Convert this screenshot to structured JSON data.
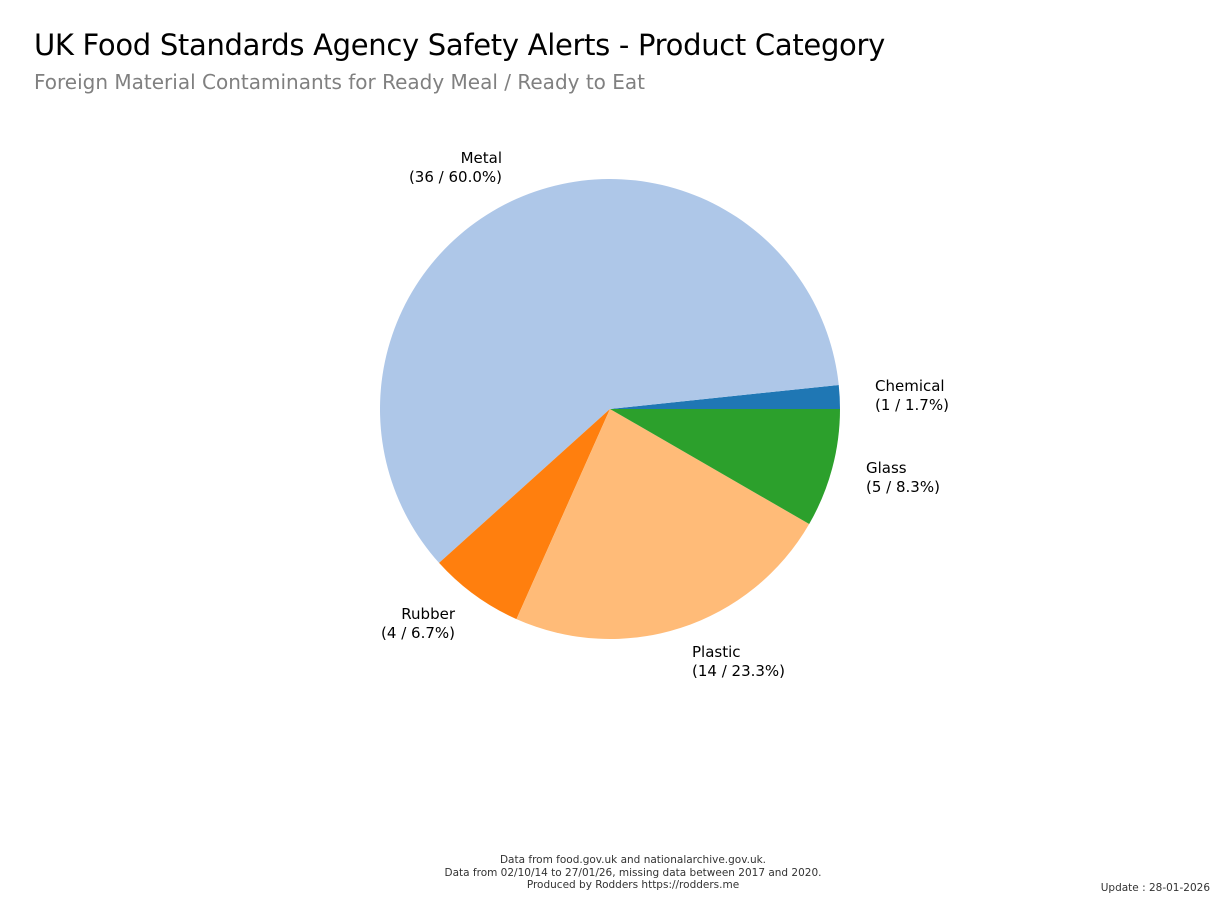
{
  "chart_data": {
    "type": "pie",
    "title": "UK Food Standards Agency Safety Alerts - Product Category",
    "subtitle": "Foreign Material Contaminants for Ready Meal / Ready to Eat",
    "slices": [
      {
        "name": "Chemical",
        "value": 1,
        "percent": 1.7,
        "label": "(1 / 1.7%)",
        "color": "#1f77b4"
      },
      {
        "name": "Metal",
        "value": 36,
        "percent": 60.0,
        "label": "(36 / 60.0%)",
        "color": "#aec7e8"
      },
      {
        "name": "Rubber",
        "value": 4,
        "percent": 6.7,
        "label": "(4 / 6.7%)",
        "color": "#ff7f0e"
      },
      {
        "name": "Plastic",
        "value": 14,
        "percent": 23.3,
        "label": "(14 / 23.3%)",
        "color": "#ffbb78"
      },
      {
        "name": "Glass",
        "value": 5,
        "percent": 8.3,
        "label": "(5 / 8.3%)",
        "color": "#2ca02c"
      }
    ],
    "start_angle_deg": 0,
    "direction": "counterclockwise"
  },
  "footer": {
    "line1": "Data from food.gov.uk and nationalarchive.gov.uk.",
    "line2": "Data from 02/10/14 to 27/01/26, missing data between 2017 and 2020.",
    "line3": "Produced by Rodders https://rodders.me",
    "update": "Update : 28-01-2026"
  }
}
